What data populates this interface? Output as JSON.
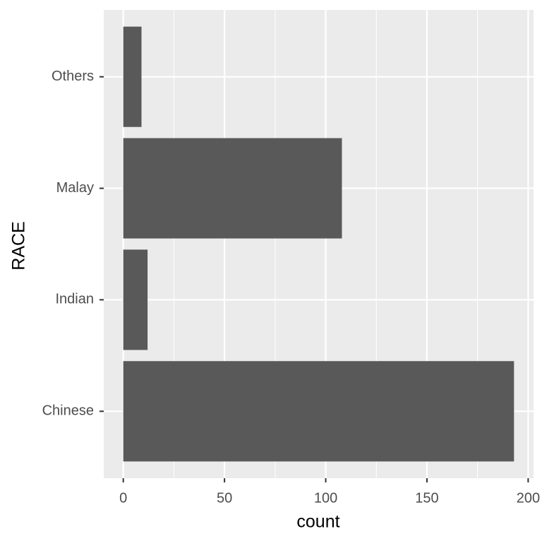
{
  "chart_data": {
    "type": "bar",
    "orientation": "horizontal",
    "x_label": "count",
    "y_label": "RACE",
    "categories": [
      "Chinese",
      "Indian",
      "Malay",
      "Others"
    ],
    "values": [
      193,
      12,
      108,
      9
    ],
    "color": "#595959",
    "xlim": [
      -9.65,
      202.65
    ],
    "xticks": [
      0,
      50,
      100,
      150,
      200
    ],
    "grid": true
  }
}
